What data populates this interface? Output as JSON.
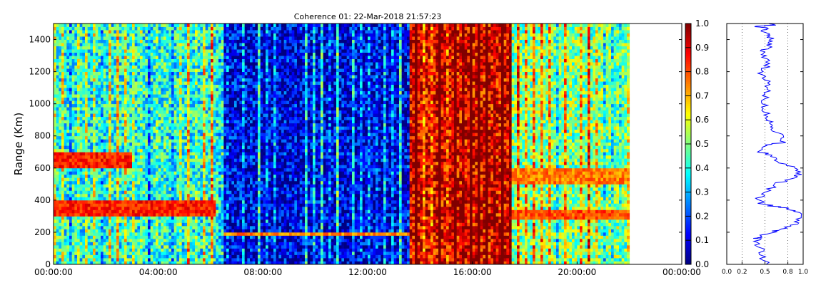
{
  "chart_data": [
    {
      "type": "heatmap",
      "title": "Coherence 01: 22-Mar-2018 21:57:23",
      "ylabel": "Range (Km)",
      "xlabel": "",
      "x_ticks": [
        "00:00:00",
        "04:00:00",
        "08:00:00",
        "12:00:00",
        "16:00:00",
        "20:00:00",
        "00:00:00"
      ],
      "x_range_hours": [
        0,
        24
      ],
      "data_end_hour": 22,
      "y_ticks": [
        0,
        200,
        400,
        600,
        800,
        1000,
        1200,
        1400
      ],
      "ylim": [
        0,
        1500
      ],
      "colorbar": {
        "colormap": "jet",
        "range": [
          0.0,
          1.0
        ],
        "ticks": [
          "0.0",
          "0.1",
          "0.2",
          "0.3",
          "0.4",
          "0.5",
          "0.6",
          "0.7",
          "0.8",
          "0.9",
          "1.0"
        ]
      },
      "regions": [
        {
          "hours": [
            0,
            6.2
          ],
          "typical_coherence": 0.4
        },
        {
          "hours": [
            6.5,
            13.6
          ],
          "typical_coherence": 0.1
        },
        {
          "hours": [
            13.6,
            17.5
          ],
          "typical_coherence": 0.9
        },
        {
          "hours": [
            17.5,
            22
          ],
          "typical_coherence": 0.5
        }
      ],
      "layers": [
        {
          "hours": [
            0,
            6.2
          ],
          "range_km": [
            300,
            400
          ],
          "coherence": 0.85
        },
        {
          "hours": [
            0,
            3
          ],
          "range_km": [
            600,
            700
          ],
          "coherence": 0.85
        },
        {
          "hours": [
            6.5,
            13.6
          ],
          "range_km": [
            180,
            200
          ],
          "coherence": 0.75
        },
        {
          "hours": [
            17.5,
            22
          ],
          "range_km": [
            280,
            350
          ],
          "coherence": 0.8
        },
        {
          "hours": [
            17.5,
            22
          ],
          "range_km": [
            500,
            600
          ],
          "coherence": 0.75
        }
      ]
    },
    {
      "type": "line",
      "title": "",
      "x_ticks": [
        "0.0",
        "0.2",
        "0.5",
        "0.8",
        "1.0"
      ],
      "xlim": [
        0,
        1
      ],
      "ylim": [
        0,
        1500
      ],
      "grid_x": [
        0.2,
        0.5,
        0.8
      ],
      "color": "#0000ff",
      "series": [
        {
          "x": [
            0.55,
            0.45,
            0.42,
            0.4,
            0.42,
            0.6,
            0.72,
            0.88,
            0.98,
            0.92,
            0.8,
            0.62,
            0.45,
            0.42,
            0.5,
            0.65,
            0.85,
            0.95,
            0.88,
            0.7,
            0.55,
            0.45,
            0.52,
            0.72,
            0.7,
            0.6,
            0.58,
            0.55,
            0.5,
            0.52,
            0.48,
            0.55,
            0.5,
            0.45,
            0.55,
            0.5,
            0.48,
            0.55,
            0.6,
            0.55,
            0.58,
            0.45,
            0.55,
            0.35,
            0.6,
            0.55
          ],
          "y": [
            0,
            60,
            120,
            160,
            170,
            200,
            220,
            250,
            290,
            330,
            350,
            360,
            380,
            420,
            450,
            500,
            540,
            560,
            600,
            640,
            680,
            700,
            740,
            760,
            800,
            850,
            880,
            900,
            950,
            1000,
            1050,
            1100,
            1150,
            1200,
            1250,
            1300,
            1330,
            1360,
            1390,
            1420,
            1440,
            1460,
            1470,
            1480,
            1490,
            1500
          ]
        }
      ]
    }
  ]
}
